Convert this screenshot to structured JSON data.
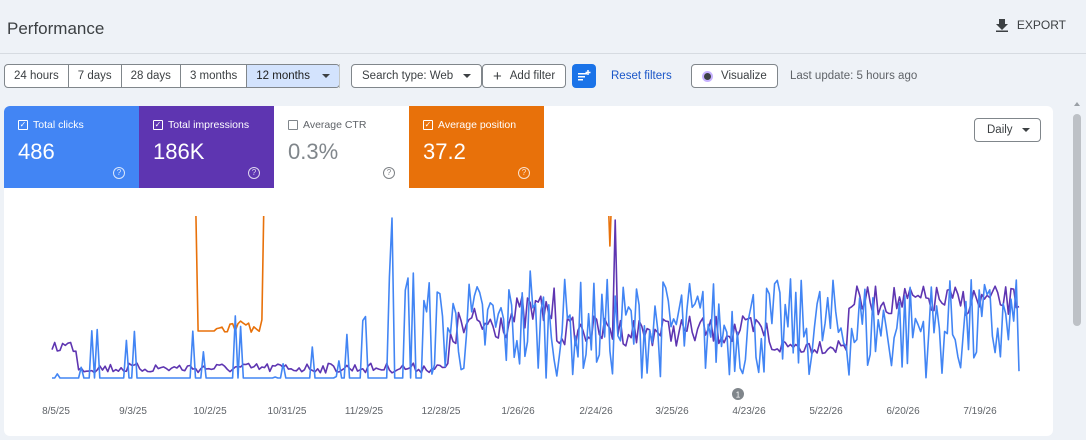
{
  "header": {
    "title": "Performance",
    "export_label": "EXPORT"
  },
  "toolbar": {
    "ranges": [
      "24 hours",
      "7 days",
      "28 days",
      "3 months",
      "12 months"
    ],
    "active_range": "12 months",
    "search_type": "Search type: Web",
    "add_filter": "Add filter",
    "reset_filters": "Reset filters",
    "visualize": "Visualize",
    "last_update": "Last update: 5 hours ago"
  },
  "metrics": [
    {
      "label": "Total clicks",
      "value": "486",
      "checked": true,
      "color": "#4285f4"
    },
    {
      "label": "Total impressions",
      "value": "186K",
      "checked": true,
      "color": "#5e35b1"
    },
    {
      "label": "Average CTR",
      "value": "0.3%",
      "checked": false,
      "color": "#ffffff"
    },
    {
      "label": "Average position",
      "value": "37.2",
      "checked": true,
      "color": "#e8710a"
    }
  ],
  "granularity": "Daily",
  "chart_data": {
    "type": "line",
    "x_ticks": [
      "8/5/25",
      "9/3/25",
      "10/2/25",
      "10/31/25",
      "11/29/25",
      "12/28/25",
      "1/26/26",
      "2/24/26",
      "3/25/26",
      "4/23/26",
      "5/22/26",
      "6/20/26",
      "7/19/26"
    ],
    "annotation": "1",
    "series": [
      {
        "name": "Total clicks",
        "color": "#4285f4"
      },
      {
        "name": "Total impressions",
        "color": "#5e35b1"
      },
      {
        "name": "Average position",
        "color": "#e8710a"
      }
    ]
  }
}
